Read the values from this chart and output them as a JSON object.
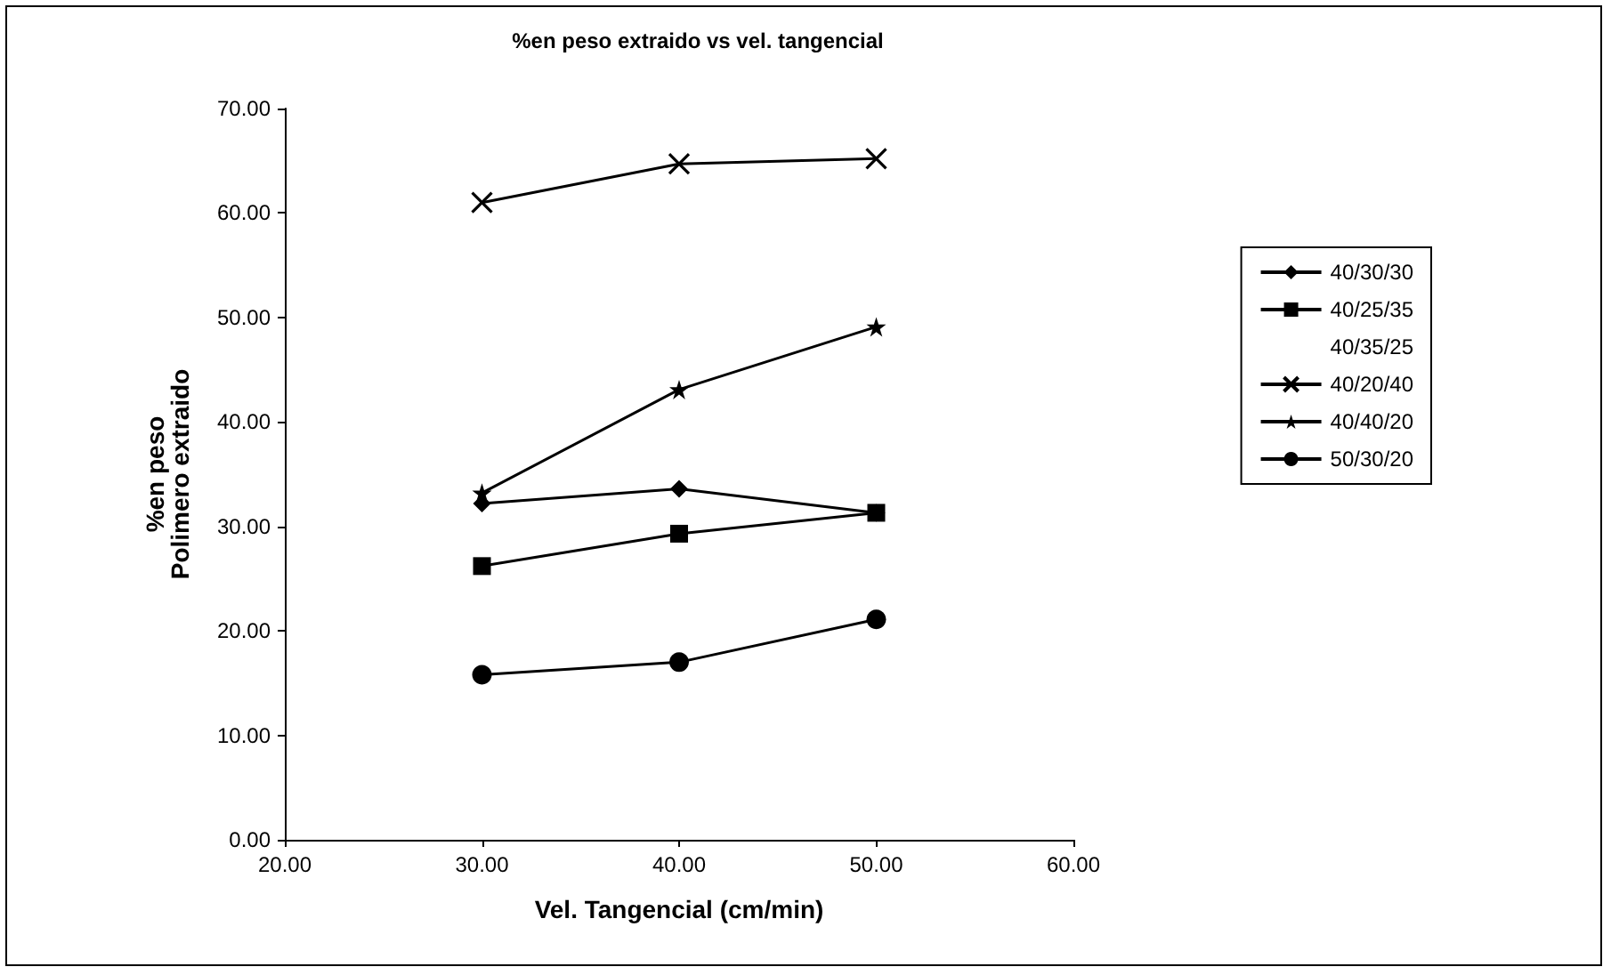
{
  "chart_data": {
    "type": "line",
    "title": "%en peso extraido vs vel. tangencial",
    "xlabel": "Vel. Tangencial (cm/min)",
    "ylabel": "%en peso\nPolimero extraido",
    "x": [
      30,
      40,
      50
    ],
    "series": [
      {
        "name": "40/30/30",
        "color": "#000000",
        "marker": "diamond",
        "values": [
          32.2,
          33.6,
          31.3
        ]
      },
      {
        "name": "40/25/35",
        "color": "#000000",
        "marker": "square",
        "values": [
          26.2,
          29.3,
          31.3
        ]
      },
      {
        "name": "40/35/25",
        "color": "#000000",
        "marker": "none",
        "line_style": "none",
        "values": [
          null,
          null,
          null
        ]
      },
      {
        "name": "40/20/40",
        "color": "#000000",
        "marker": "cross",
        "values": [
          61.0,
          64.7,
          65.2
        ]
      },
      {
        "name": "40/40/20",
        "color": "#000000",
        "marker": "star",
        "values": [
          33.2,
          43.1,
          49.1
        ]
      },
      {
        "name": "50/30/20",
        "color": "#000000",
        "marker": "circle",
        "values": [
          15.8,
          17.0,
          21.1
        ]
      }
    ],
    "xlim": [
      20,
      60
    ],
    "xticks": [
      {
        "value": 20,
        "label": "20.00"
      },
      {
        "value": 30,
        "label": "30.00"
      },
      {
        "value": 40,
        "label": "40.00"
      },
      {
        "value": 50,
        "label": "50.00"
      },
      {
        "value": 60,
        "label": "60.00"
      }
    ],
    "ylim": [
      0,
      70
    ],
    "yticks": [
      {
        "value": 0,
        "label": "0.00"
      },
      {
        "value": 10,
        "label": "10.00"
      },
      {
        "value": 20,
        "label": "20.00"
      },
      {
        "value": 30,
        "label": "30.00"
      },
      {
        "value": 40,
        "label": "40.00"
      },
      {
        "value": 50,
        "label": "50.00"
      },
      {
        "value": 60,
        "label": "60.00"
      },
      {
        "value": 70,
        "label": "70.00"
      }
    ],
    "grid": false,
    "legend": "right"
  }
}
